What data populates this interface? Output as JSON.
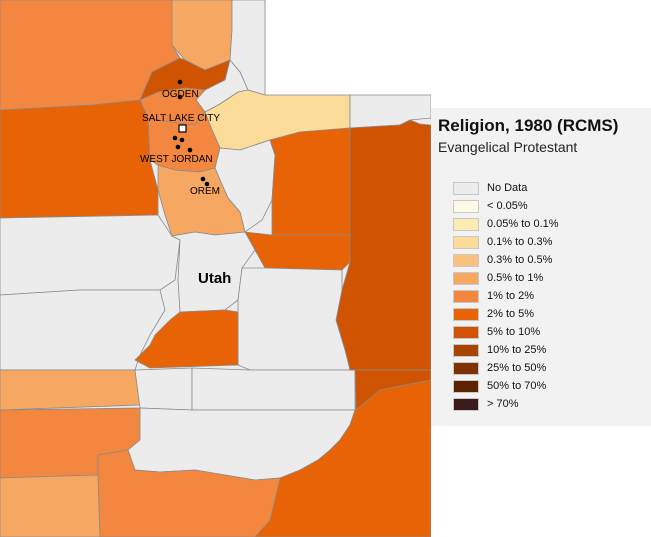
{
  "map": {
    "state_label": "Utah",
    "cities": [
      {
        "name": "OGDEN"
      },
      {
        "name": "SALT LAKE CITY",
        "capital": true
      },
      {
        "name": "WEST JORDAN"
      },
      {
        "name": "OREM"
      }
    ]
  },
  "legend": {
    "title": "Religion, 1980 (RCMS)",
    "subtitle": "Evangelical Protestant",
    "items": [
      {
        "label": "No Data",
        "color": "#ececec"
      },
      {
        "label": "< 0.05%",
        "color": "#fdfbe6"
      },
      {
        "label": "0.05% to 0.1%",
        "color": "#fcecb4"
      },
      {
        "label": "0.1% to 0.3%",
        "color": "#fbdc98"
      },
      {
        "label": "0.3% to 0.5%",
        "color": "#f9c07e"
      },
      {
        "label": "0.5% to 1%",
        "color": "#f6a863"
      },
      {
        "label": "1% to 2%",
        "color": "#f4873f"
      },
      {
        "label": "2% to 5%",
        "color": "#e86206"
      },
      {
        "label": "5% to 10%",
        "color": "#cf5300"
      },
      {
        "label": "10% to 25%",
        "color": "#a84300"
      },
      {
        "label": "25% to 50%",
        "color": "#803200"
      },
      {
        "label": "50% to 70%",
        "color": "#5c2300"
      },
      {
        "label": "> 70%",
        "color": "#3b1a1a"
      }
    ]
  },
  "county_classes": {
    "box_elder": "1% to 2%",
    "cache": "0.5% to 1%",
    "rich": "No Data",
    "weber": "5% to 10%",
    "morgan": "No Data",
    "davis": "1% to 2%",
    "summit": "0.1% to 0.3%",
    "tooele": "2% to 5%",
    "salt_lake": "1% to 2%",
    "wasatch": "No Data",
    "utah_county": "0.5% to 1%",
    "daggett": "No Data",
    "uintah": "5% to 10%",
    "duchesne": "2% to 5%",
    "carbon": "2% to 5%",
    "juab": "No Data",
    "millard": "No Data",
    "sanpete": "No Data",
    "emery": "No Data",
    "grand": "5% to 10%",
    "sevier": "2% to 5%",
    "beaver": "0.5% to 1%",
    "piute": "No Data",
    "wayne": "No Data",
    "iron": "1% to 2%",
    "garfield": "No Data",
    "san_juan": "2% to 5%",
    "washington": "0.5% to 1%",
    "kane": "1% to 2%"
  }
}
